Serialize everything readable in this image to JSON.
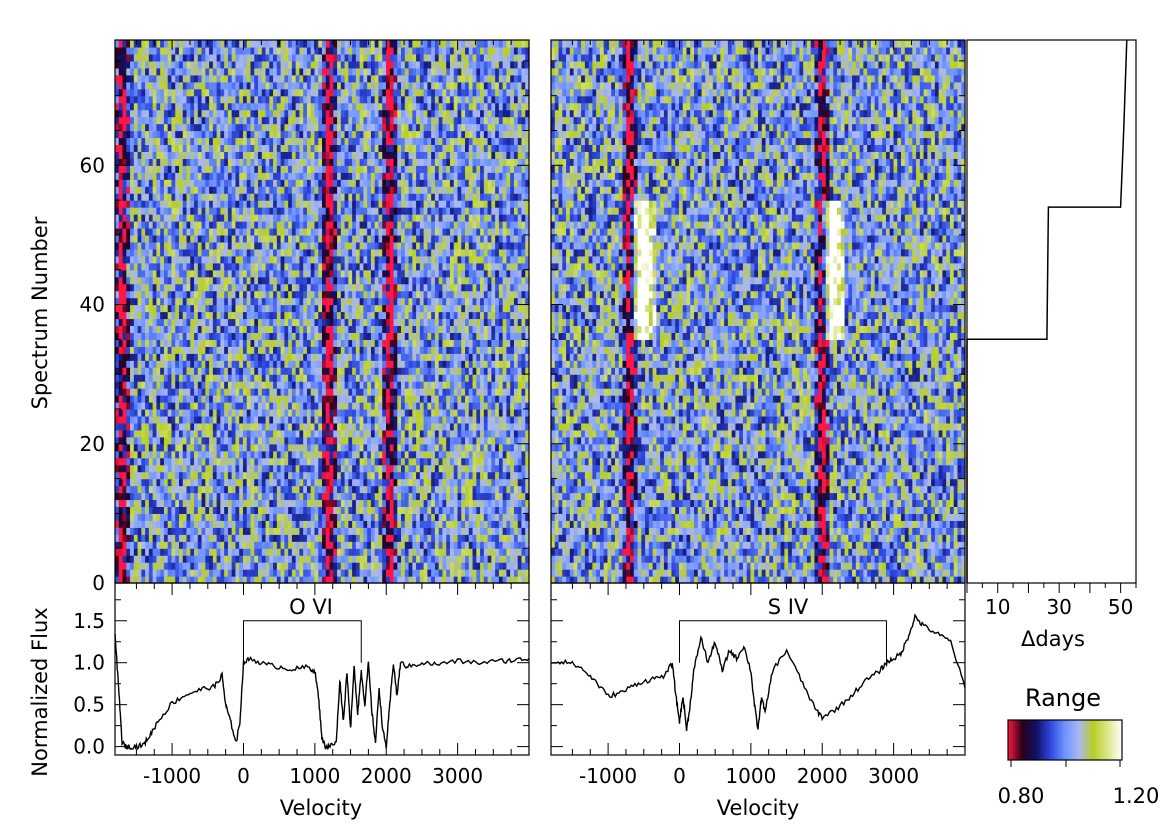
{
  "chart_data": [
    {
      "type": "heatmap",
      "panel": "dynamic-spectrum-ovi",
      "ylabel": "Spectrum Number",
      "x_range": [
        -1800,
        4000
      ],
      "y_range": [
        0,
        78
      ],
      "y_ticks": [
        "0",
        "20",
        "40",
        "60"
      ],
      "color_range": [
        0.8,
        1.2
      ],
      "bright_feature_rows": [
        35,
        54
      ],
      "dark_troughs_velocity": [
        -1700,
        1200,
        2050
      ]
    },
    {
      "type": "heatmap",
      "panel": "dynamic-spectrum-siv",
      "x_range": [
        -1800,
        4000
      ],
      "y_range": [
        0,
        78
      ],
      "color_range": [
        0.8,
        1.2
      ],
      "bright_feature_rows": [
        35,
        54
      ],
      "bright_features_velocity": [
        -500,
        2150
      ],
      "dark_troughs_velocity": [
        -700,
        2000
      ]
    },
    {
      "type": "line",
      "panel": "time-sampling",
      "xlabel": "Δdays",
      "x_ticks": [
        "10",
        "30",
        "50"
      ],
      "x_range": [
        0,
        55
      ],
      "y_range": [
        0,
        78
      ],
      "steps": [
        {
          "spectrum": 0,
          "days": 0
        },
        {
          "spectrum": 35,
          "days": 0
        },
        {
          "spectrum": 35,
          "days": 26
        },
        {
          "spectrum": 54,
          "days": 26.5
        },
        {
          "spectrum": 54,
          "days": 50
        },
        {
          "spectrum": 65,
          "days": 51
        },
        {
          "spectrum": 78,
          "days": 52
        }
      ]
    },
    {
      "type": "line",
      "panel": "mean-spectrum-ovi",
      "label": "O VI",
      "ylabel": "Normalized Flux",
      "xlabel": "Velocity",
      "x_ticks": [
        "-1000",
        "0",
        "1000",
        "2000",
        "3000"
      ],
      "y_ticks": [
        "0.0",
        "0.5",
        "1.0",
        "1.5"
      ],
      "x_range": [
        -1800,
        4000
      ],
      "y_range": [
        -0.1,
        1.95
      ],
      "bracket_velocity": [
        0,
        1650
      ],
      "x": [
        -1800,
        -1750,
        -1700,
        -1650,
        -1600,
        -1500,
        -1400,
        -1300,
        -1200,
        -1000,
        -800,
        -600,
        -400,
        -300,
        -250,
        -200,
        -100,
        -50,
        0,
        100,
        300,
        500,
        700,
        900,
        1000,
        1050,
        1100,
        1150,
        1200,
        1300,
        1350,
        1400,
        1450,
        1500,
        1550,
        1600,
        1650,
        1700,
        1750,
        1800,
        1850,
        1900,
        1950,
        2000,
        2050,
        2100,
        2150,
        2200,
        2300,
        2500,
        2700,
        3000,
        3300,
        3600,
        3800,
        4000
      ],
      "y": [
        1.35,
        0.7,
        0.05,
        0.0,
        0.0,
        0.0,
        0.02,
        0.15,
        0.3,
        0.52,
        0.62,
        0.68,
        0.72,
        0.85,
        0.5,
        0.35,
        0.05,
        0.3,
        1.0,
        1.05,
        0.98,
        0.95,
        0.92,
        0.95,
        0.9,
        0.6,
        0.1,
        0.0,
        0.0,
        0.05,
        0.8,
        0.3,
        0.9,
        0.2,
        0.95,
        0.4,
        0.9,
        0.5,
        1.0,
        0.4,
        0.05,
        0.7,
        0.2,
        0.0,
        0.5,
        1.0,
        0.6,
        1.0,
        0.95,
        1.0,
        0.98,
        1.02,
        1.0,
        1.02,
        1.03,
        1.05
      ]
    },
    {
      "type": "line",
      "panel": "mean-spectrum-siv",
      "label": "S IV",
      "xlabel": "Velocity",
      "x_ticks": [
        "-1000",
        "0",
        "1000",
        "2000",
        "3000"
      ],
      "x_range": [
        -1800,
        4000
      ],
      "y_range": [
        -0.1,
        1.95
      ],
      "bracket_velocity": [
        0,
        2900
      ],
      "x": [
        -1800,
        -1600,
        -1400,
        -1200,
        -1000,
        -800,
        -600,
        -400,
        -200,
        -100,
        -50,
        0,
        50,
        100,
        150,
        200,
        300,
        400,
        500,
        600,
        700,
        800,
        900,
        1000,
        1050,
        1100,
        1150,
        1200,
        1300,
        1500,
        1700,
        1900,
        2000,
        2200,
        2400,
        2600,
        2800,
        2900,
        3000,
        3100,
        3200,
        3300,
        3400,
        3600,
        3800,
        4000
      ],
      "y": [
        1.0,
        1.02,
        0.95,
        0.8,
        0.6,
        0.65,
        0.75,
        0.8,
        0.85,
        1.0,
        0.6,
        0.3,
        0.6,
        0.2,
        0.5,
        0.9,
        1.3,
        1.0,
        1.25,
        0.9,
        1.15,
        1.05,
        1.2,
        0.9,
        0.5,
        0.2,
        0.6,
        0.4,
        0.9,
        1.15,
        0.8,
        0.45,
        0.35,
        0.45,
        0.6,
        0.78,
        0.9,
        1.0,
        1.05,
        1.1,
        1.3,
        1.55,
        1.45,
        1.35,
        1.25,
        0.7
      ]
    }
  ],
  "colorbar": {
    "label": "Range",
    "min_label": "0.80",
    "max_label": "1.20",
    "stops": [
      "#ff1744",
      "#2b0018",
      "#111166",
      "#2f48e0",
      "#6e94ff",
      "#aab8f0",
      "#b8cf24",
      "#dbe68a",
      "#ffffff"
    ]
  }
}
